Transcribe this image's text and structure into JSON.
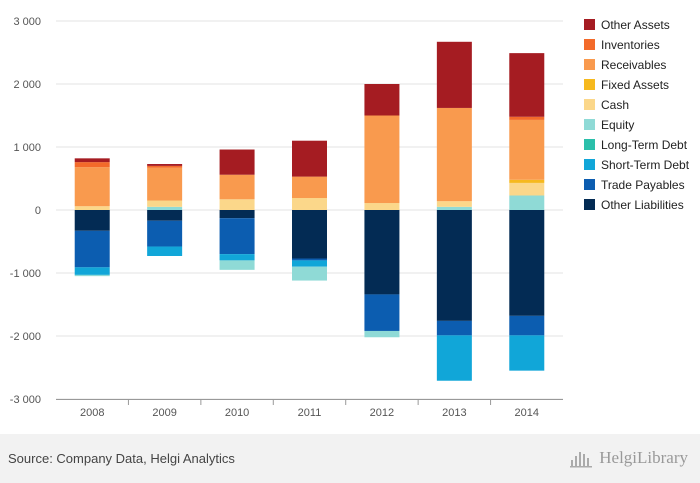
{
  "chart_data": {
    "type": "bar",
    "stacked": true,
    "categories": [
      "2008",
      "2009",
      "2010",
      "2011",
      "2012",
      "2013",
      "2014"
    ],
    "ylim": [
      -3000,
      3000
    ],
    "yticks": [
      -3000,
      -2000,
      -1000,
      0,
      1000,
      2000,
      3000
    ],
    "ytick_labels": [
      "-3 000",
      "-2 000",
      "-1 000",
      "0",
      "1 000",
      "2 000",
      "3 000"
    ],
    "grid": true,
    "legend_position": "right",
    "series": [
      {
        "name": "Other Assets",
        "color": "#a51c22",
        "values": [
          60,
          30,
          400,
          570,
          500,
          1050,
          1010
        ]
      },
      {
        "name": "Inventories",
        "color": "#f36a2a",
        "values": [
          80,
          30,
          0,
          0,
          0,
          0,
          50
        ]
      },
      {
        "name": "Receivables",
        "color": "#f99a4e",
        "values": [
          620,
          520,
          390,
          340,
          1390,
          1480,
          950
        ]
      },
      {
        "name": "Fixed Assets",
        "color": "#f6b91e",
        "values": [
          0,
          0,
          0,
          0,
          0,
          0,
          50
        ]
      },
      {
        "name": "Cash",
        "color": "#fbd78a",
        "values": [
          60,
          100,
          170,
          190,
          110,
          90,
          200
        ]
      },
      {
        "name": "Equity",
        "color": "#8fdad6",
        "values": [
          -20,
          50,
          -150,
          -220,
          -100,
          50,
          230
        ]
      },
      {
        "name": "Long-Term Debt",
        "color": "#2bbfaa",
        "values": [
          0,
          0,
          0,
          0,
          0,
          0,
          0
        ]
      },
      {
        "name": "Short-Term Debt",
        "color": "#11a6d8",
        "values": [
          -120,
          -150,
          -100,
          -100,
          0,
          -720,
          -560
        ]
      },
      {
        "name": "Trade Payables",
        "color": "#0c5db0",
        "values": [
          -580,
          -410,
          -570,
          -30,
          -580,
          -230,
          -310
        ]
      },
      {
        "name": "Other Liabilities",
        "color": "#032b54",
        "values": [
          -330,
          -170,
          -130,
          -770,
          -1340,
          -1760,
          -1680
        ]
      }
    ]
  },
  "footer": {
    "source": "Source: Company Data, Helgi Analytics",
    "brand": "HelgiLibrary"
  }
}
